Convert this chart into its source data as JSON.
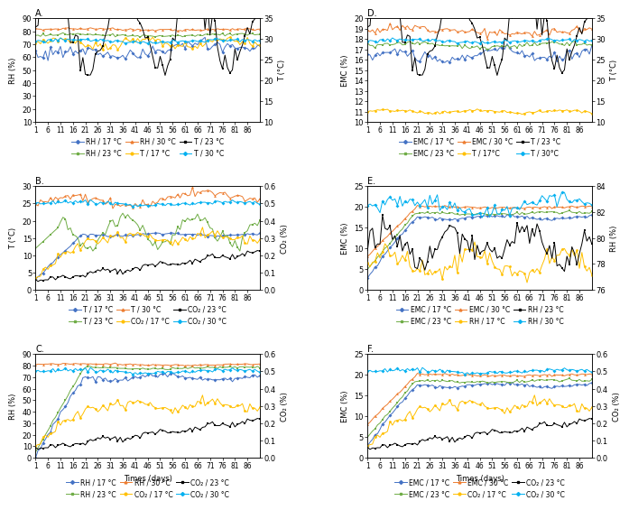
{
  "n_days": 91,
  "panel_A": {
    "title": "A.",
    "left_ylabel": "RH (%)",
    "right_ylabel": "T (°C)",
    "left_ylim": [
      10,
      90
    ],
    "right_ylim": [
      10,
      35
    ],
    "left_yticks": [
      10,
      20,
      30,
      40,
      50,
      60,
      70,
      80,
      90
    ],
    "right_yticks": [
      10,
      15,
      20,
      25,
      30,
      35
    ],
    "legend": [
      "RH / 17 °C",
      "RH / 23 °C",
      "RH / 30 °C",
      "T / 17 °C",
      "T / 23 °C",
      "T / 30 °C"
    ]
  },
  "panel_B": {
    "title": "B.",
    "left_ylabel": "T (°C)",
    "right_ylabel": "CO₂ (%)",
    "left_ylim": [
      0,
      30
    ],
    "right_ylim": [
      0.0,
      0.6
    ],
    "left_yticks": [
      0,
      5,
      10,
      15,
      20,
      25,
      30
    ],
    "right_yticks": [
      0.0,
      0.1,
      0.2,
      0.3,
      0.4,
      0.5,
      0.6
    ],
    "legend": [
      "T / 17 °C",
      "T / 23 °C",
      "T / 30 °C",
      "CO₂ / 17 °C",
      "CO₂ / 23 °C",
      "CO₂ / 30 °C"
    ]
  },
  "panel_C": {
    "title": "C.",
    "left_ylabel": "RH (%)",
    "right_ylabel": "CO₂ (%)",
    "left_ylim": [
      0,
      90
    ],
    "right_ylim": [
      0.0,
      0.6
    ],
    "left_yticks": [
      0,
      10,
      20,
      30,
      40,
      50,
      60,
      70,
      80,
      90
    ],
    "right_yticks": [
      0.0,
      0.1,
      0.2,
      0.3,
      0.4,
      0.5,
      0.6
    ],
    "legend": [
      "RH / 17 °C",
      "RH / 23 °C",
      "RH / 30 °C",
      "CO₂ / 17 °C",
      "CO₂ / 23 °C",
      "CO₂ / 30 °C"
    ]
  },
  "panel_D": {
    "title": "D.",
    "left_ylabel": "EMC (%)",
    "right_ylabel": "T (°C)",
    "left_ylim": [
      10,
      20
    ],
    "right_ylim": [
      10,
      35
    ],
    "left_yticks": [
      10,
      11,
      12,
      13,
      14,
      15,
      16,
      17,
      18,
      19,
      20
    ],
    "right_yticks": [
      10,
      15,
      20,
      25,
      30,
      35
    ],
    "legend": [
      "EMC / 17 °C",
      "EMC / 23 °C",
      "EMC / 30 °C",
      "T / 17°C",
      "T / 23 °C",
      "T / 30°C"
    ]
  },
  "panel_E": {
    "title": "E.",
    "left_ylabel": "EMC (%)",
    "right_ylabel": "RH (%)",
    "left_ylim": [
      0,
      25
    ],
    "right_ylim": [
      76,
      84
    ],
    "left_yticks": [
      0,
      5,
      10,
      15,
      20,
      25
    ],
    "right_yticks": [
      76,
      78,
      80,
      82,
      84
    ],
    "legend": [
      "EMC / 17 °C",
      "EMC / 23 °C",
      "EMC / 30 °C",
      "RH / 17 °C",
      "RH / 23 °C",
      "RH / 30 °C"
    ]
  },
  "panel_F": {
    "title": "F.",
    "left_ylabel": "EMC (%)",
    "right_ylabel": "CO₂ (%)",
    "left_ylim": [
      0,
      25
    ],
    "right_ylim": [
      0.0,
      0.6
    ],
    "left_yticks": [
      0,
      5,
      10,
      15,
      20,
      25
    ],
    "right_yticks": [
      0.0,
      0.1,
      0.2,
      0.3,
      0.4,
      0.5,
      0.6
    ],
    "legend": [
      "EMC / 17 °C",
      "EMC / 23 °C",
      "EMC / 30 °C",
      "CO₂ / 17 °C",
      "CO₂ / 23 °C",
      "CO₂ / 30 °C"
    ]
  },
  "colors": {
    "blue": "#4472C4",
    "green": "#70AD47",
    "orange": "#ED7D31",
    "yellow": "#FFC000",
    "black": "#000000",
    "light_blue": "#00B0F0"
  },
  "xlabel": "Times (days)",
  "xticks": [
    1,
    6,
    11,
    16,
    21,
    26,
    31,
    36,
    41,
    46,
    51,
    56,
    61,
    66,
    71,
    76,
    81,
    86
  ],
  "fontsize": 6,
  "title_fontsize": 7
}
